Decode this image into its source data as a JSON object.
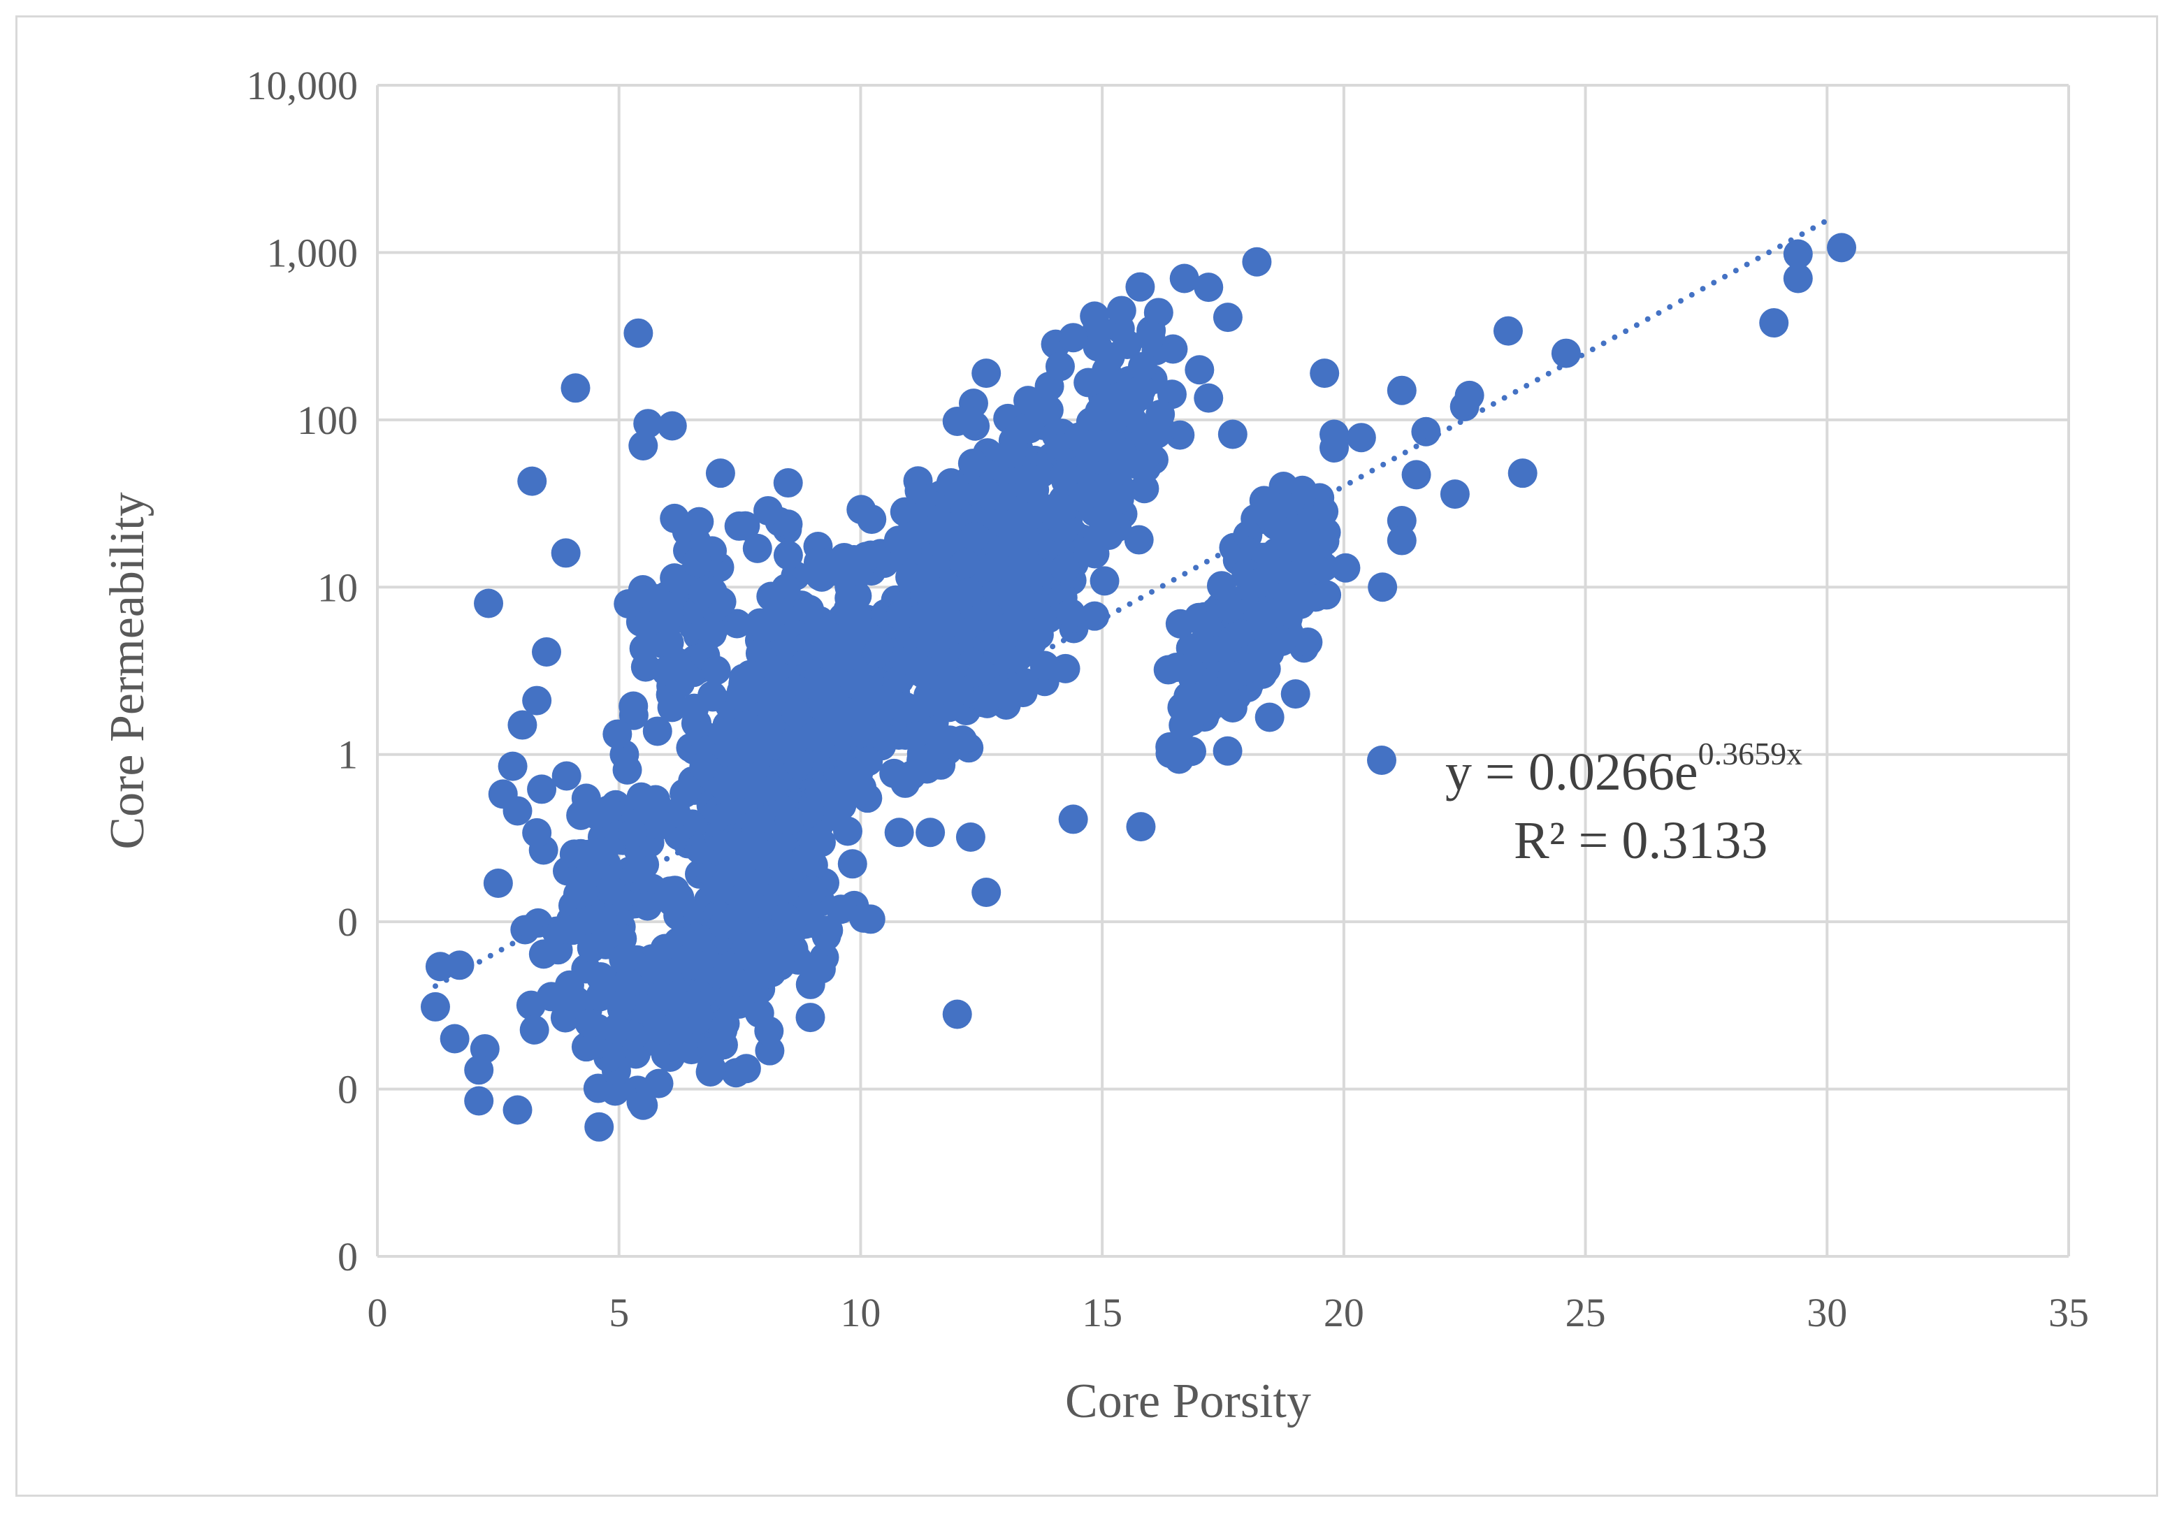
{
  "chart_data": {
    "type": "scatter",
    "title": "",
    "xlabel": "Core Porsity",
    "ylabel": "Core Permeability",
    "xlim": [
      0,
      35
    ],
    "ylim": [
      0.001,
      10000
    ],
    "yscale": "log",
    "grid": true,
    "colors": {
      "marker": "#4472c4",
      "grid": "#d9d9d9",
      "text": "#595959",
      "trendline": "#4472c4"
    },
    "x_ticks": [
      0,
      5,
      10,
      15,
      20,
      25,
      30,
      35
    ],
    "x_tick_labels": [
      "0",
      "5",
      "10",
      "15",
      "20",
      "25",
      "30",
      "35"
    ],
    "y_ticks": [
      0.001,
      0.01,
      0.1,
      1,
      10,
      100,
      1000,
      10000
    ],
    "y_tick_labels": [
      "0",
      "0",
      "0",
      "1",
      "10",
      "100",
      "1,000",
      "10,000"
    ],
    "legend": {
      "placement": "right",
      "equation_base": "y = 0.0266e",
      "equation_exp": "0.3659x",
      "r_squared": "R² = 0.3133"
    },
    "trendline": {
      "type": "exponential",
      "a": 0.0266,
      "b": 0.3659,
      "x_range": [
        1.2,
        30
      ]
    },
    "outliers": [
      {
        "x": 18.2,
        "y": 880
      },
      {
        "x": 16.7,
        "y": 700
      },
      {
        "x": 17.2,
        "y": 620
      },
      {
        "x": 15.4,
        "y": 450
      },
      {
        "x": 14.4,
        "y": 310
      },
      {
        "x": 12.6,
        "y": 190
      },
      {
        "x": 17.6,
        "y": 410
      },
      {
        "x": 19.6,
        "y": 190
      },
      {
        "x": 21.2,
        "y": 150
      },
      {
        "x": 22.6,
        "y": 140
      },
      {
        "x": 22.5,
        "y": 120
      },
      {
        "x": 23.4,
        "y": 340
      },
      {
        "x": 24.6,
        "y": 250
      },
      {
        "x": 21.7,
        "y": 85
      },
      {
        "x": 23.7,
        "y": 48
      },
      {
        "x": 22.3,
        "y": 36
      },
      {
        "x": 21.5,
        "y": 47
      },
      {
        "x": 21.2,
        "y": 25
      },
      {
        "x": 21.2,
        "y": 19
      },
      {
        "x": 20.8,
        "y": 10
      },
      {
        "x": 19.8,
        "y": 82
      },
      {
        "x": 19.8,
        "y": 68
      },
      {
        "x": 29.4,
        "y": 980
      },
      {
        "x": 30.3,
        "y": 1070
      },
      {
        "x": 29.4,
        "y": 700
      },
      {
        "x": 28.9,
        "y": 380
      },
      {
        "x": 5.4,
        "y": 330
      },
      {
        "x": 4.1,
        "y": 155
      },
      {
        "x": 5.6,
        "y": 95
      },
      {
        "x": 6.1,
        "y": 92
      },
      {
        "x": 5.5,
        "y": 70
      },
      {
        "x": 3.2,
        "y": 43
      },
      {
        "x": 7.1,
        "y": 48
      },
      {
        "x": 8.5,
        "y": 42
      },
      {
        "x": 2.3,
        "y": 8
      },
      {
        "x": 3.9,
        "y": 16
      },
      {
        "x": 3.5,
        "y": 4.1
      },
      {
        "x": 3.3,
        "y": 2.1
      },
      {
        "x": 3.0,
        "y": 1.5
      },
      {
        "x": 2.8,
        "y": 0.85
      },
      {
        "x": 2.6,
        "y": 0.58
      },
      {
        "x": 3.4,
        "y": 0.62
      },
      {
        "x": 2.9,
        "y": 0.46
      },
      {
        "x": 3.3,
        "y": 0.34
      },
      {
        "x": 2.5,
        "y": 0.17
      },
      {
        "x": 1.3,
        "y": 0.054
      },
      {
        "x": 1.7,
        "y": 0.055
      },
      {
        "x": 1.2,
        "y": 0.031
      },
      {
        "x": 1.6,
        "y": 0.02
      },
      {
        "x": 2.1,
        "y": 0.0085
      },
      {
        "x": 2.9,
        "y": 0.0075
      },
      {
        "x": 2.1,
        "y": 0.013
      },
      {
        "x": 5.5,
        "y": 0.008
      },
      {
        "x": 12.0,
        "y": 0.028
      },
      {
        "x": 15.8,
        "y": 0.37
      },
      {
        "x": 14.4,
        "y": 0.41
      },
      {
        "x": 19.0,
        "y": 2.3
      },
      {
        "x": 17.7,
        "y": 1.9
      },
      {
        "x": 12.6,
        "y": 0.15
      },
      {
        "x": 12.0,
        "y": 98
      },
      {
        "x": 17.7,
        "y": 82
      },
      {
        "x": 17.2,
        "y": 135
      }
    ],
    "clusters": [
      {
        "x_center": 8.5,
        "x_spread": 2.4,
        "log10_y_center": 0.1,
        "log10_y_spread": 0.9,
        "count": 520,
        "slope": 0.26
      },
      {
        "x_center": 12.5,
        "x_spread": 2.0,
        "log10_y_center": 1.0,
        "log10_y_spread": 0.8,
        "count": 320,
        "slope": 0.22
      },
      {
        "x_center": 7.0,
        "x_spread": 2.0,
        "log10_y_center": -1.3,
        "log10_y_spread": 0.45,
        "count": 300,
        "slope": 0.15
      },
      {
        "x_center": 15.0,
        "x_spread": 1.4,
        "log10_y_center": 1.8,
        "log10_y_spread": 0.6,
        "count": 140,
        "slope": 0.25
      },
      {
        "x_center": 18.0,
        "x_spread": 1.5,
        "log10_y_center": 0.7,
        "log10_y_spread": 0.35,
        "count": 160,
        "slope": 0.24
      },
      {
        "x_center": 6.5,
        "x_spread": 1.2,
        "log10_y_center": 0.9,
        "log10_y_spread": 0.5,
        "count": 60,
        "slope": 0.1
      },
      {
        "x_center": 4.5,
        "x_spread": 1.0,
        "log10_y_center": -0.9,
        "log10_y_spread": 0.6,
        "count": 90,
        "slope": 0.25
      },
      {
        "x_center": 18.8,
        "x_spread": 0.9,
        "log10_y_center": 1.35,
        "log10_y_spread": 0.3,
        "count": 40,
        "slope": 0.2
      }
    ]
  }
}
